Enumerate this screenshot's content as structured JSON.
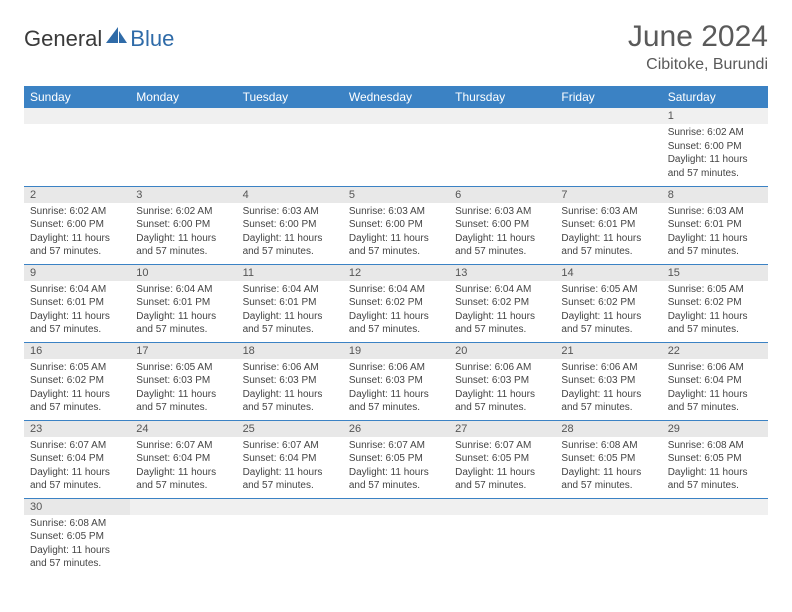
{
  "logo": {
    "general": "General",
    "blue": "Blue"
  },
  "title": "June 2024",
  "location": "Cibitoke, Burundi",
  "colors": {
    "header_bg": "#3b82c4",
    "header_fg": "#ffffff",
    "daynum_bg": "#e8e8e8",
    "text": "#444444",
    "title_color": "#5a5a5a",
    "logo_blue": "#2f6ba8"
  },
  "weekdays": [
    "Sunday",
    "Monday",
    "Tuesday",
    "Wednesday",
    "Thursday",
    "Friday",
    "Saturday"
  ],
  "weeks": [
    [
      {
        "n": "",
        "sr": "",
        "ss": "",
        "dl": ""
      },
      {
        "n": "",
        "sr": "",
        "ss": "",
        "dl": ""
      },
      {
        "n": "",
        "sr": "",
        "ss": "",
        "dl": ""
      },
      {
        "n": "",
        "sr": "",
        "ss": "",
        "dl": ""
      },
      {
        "n": "",
        "sr": "",
        "ss": "",
        "dl": ""
      },
      {
        "n": "",
        "sr": "",
        "ss": "",
        "dl": ""
      },
      {
        "n": "1",
        "sr": "Sunrise: 6:02 AM",
        "ss": "Sunset: 6:00 PM",
        "dl": "Daylight: 11 hours and 57 minutes."
      }
    ],
    [
      {
        "n": "2",
        "sr": "Sunrise: 6:02 AM",
        "ss": "Sunset: 6:00 PM",
        "dl": "Daylight: 11 hours and 57 minutes."
      },
      {
        "n": "3",
        "sr": "Sunrise: 6:02 AM",
        "ss": "Sunset: 6:00 PM",
        "dl": "Daylight: 11 hours and 57 minutes."
      },
      {
        "n": "4",
        "sr": "Sunrise: 6:03 AM",
        "ss": "Sunset: 6:00 PM",
        "dl": "Daylight: 11 hours and 57 minutes."
      },
      {
        "n": "5",
        "sr": "Sunrise: 6:03 AM",
        "ss": "Sunset: 6:00 PM",
        "dl": "Daylight: 11 hours and 57 minutes."
      },
      {
        "n": "6",
        "sr": "Sunrise: 6:03 AM",
        "ss": "Sunset: 6:00 PM",
        "dl": "Daylight: 11 hours and 57 minutes."
      },
      {
        "n": "7",
        "sr": "Sunrise: 6:03 AM",
        "ss": "Sunset: 6:01 PM",
        "dl": "Daylight: 11 hours and 57 minutes."
      },
      {
        "n": "8",
        "sr": "Sunrise: 6:03 AM",
        "ss": "Sunset: 6:01 PM",
        "dl": "Daylight: 11 hours and 57 minutes."
      }
    ],
    [
      {
        "n": "9",
        "sr": "Sunrise: 6:04 AM",
        "ss": "Sunset: 6:01 PM",
        "dl": "Daylight: 11 hours and 57 minutes."
      },
      {
        "n": "10",
        "sr": "Sunrise: 6:04 AM",
        "ss": "Sunset: 6:01 PM",
        "dl": "Daylight: 11 hours and 57 minutes."
      },
      {
        "n": "11",
        "sr": "Sunrise: 6:04 AM",
        "ss": "Sunset: 6:01 PM",
        "dl": "Daylight: 11 hours and 57 minutes."
      },
      {
        "n": "12",
        "sr": "Sunrise: 6:04 AM",
        "ss": "Sunset: 6:02 PM",
        "dl": "Daylight: 11 hours and 57 minutes."
      },
      {
        "n": "13",
        "sr": "Sunrise: 6:04 AM",
        "ss": "Sunset: 6:02 PM",
        "dl": "Daylight: 11 hours and 57 minutes."
      },
      {
        "n": "14",
        "sr": "Sunrise: 6:05 AM",
        "ss": "Sunset: 6:02 PM",
        "dl": "Daylight: 11 hours and 57 minutes."
      },
      {
        "n": "15",
        "sr": "Sunrise: 6:05 AM",
        "ss": "Sunset: 6:02 PM",
        "dl": "Daylight: 11 hours and 57 minutes."
      }
    ],
    [
      {
        "n": "16",
        "sr": "Sunrise: 6:05 AM",
        "ss": "Sunset: 6:02 PM",
        "dl": "Daylight: 11 hours and 57 minutes."
      },
      {
        "n": "17",
        "sr": "Sunrise: 6:05 AM",
        "ss": "Sunset: 6:03 PM",
        "dl": "Daylight: 11 hours and 57 minutes."
      },
      {
        "n": "18",
        "sr": "Sunrise: 6:06 AM",
        "ss": "Sunset: 6:03 PM",
        "dl": "Daylight: 11 hours and 57 minutes."
      },
      {
        "n": "19",
        "sr": "Sunrise: 6:06 AM",
        "ss": "Sunset: 6:03 PM",
        "dl": "Daylight: 11 hours and 57 minutes."
      },
      {
        "n": "20",
        "sr": "Sunrise: 6:06 AM",
        "ss": "Sunset: 6:03 PM",
        "dl": "Daylight: 11 hours and 57 minutes."
      },
      {
        "n": "21",
        "sr": "Sunrise: 6:06 AM",
        "ss": "Sunset: 6:03 PM",
        "dl": "Daylight: 11 hours and 57 minutes."
      },
      {
        "n": "22",
        "sr": "Sunrise: 6:06 AM",
        "ss": "Sunset: 6:04 PM",
        "dl": "Daylight: 11 hours and 57 minutes."
      }
    ],
    [
      {
        "n": "23",
        "sr": "Sunrise: 6:07 AM",
        "ss": "Sunset: 6:04 PM",
        "dl": "Daylight: 11 hours and 57 minutes."
      },
      {
        "n": "24",
        "sr": "Sunrise: 6:07 AM",
        "ss": "Sunset: 6:04 PM",
        "dl": "Daylight: 11 hours and 57 minutes."
      },
      {
        "n": "25",
        "sr": "Sunrise: 6:07 AM",
        "ss": "Sunset: 6:04 PM",
        "dl": "Daylight: 11 hours and 57 minutes."
      },
      {
        "n": "26",
        "sr": "Sunrise: 6:07 AM",
        "ss": "Sunset: 6:05 PM",
        "dl": "Daylight: 11 hours and 57 minutes."
      },
      {
        "n": "27",
        "sr": "Sunrise: 6:07 AM",
        "ss": "Sunset: 6:05 PM",
        "dl": "Daylight: 11 hours and 57 minutes."
      },
      {
        "n": "28",
        "sr": "Sunrise: 6:08 AM",
        "ss": "Sunset: 6:05 PM",
        "dl": "Daylight: 11 hours and 57 minutes."
      },
      {
        "n": "29",
        "sr": "Sunrise: 6:08 AM",
        "ss": "Sunset: 6:05 PM",
        "dl": "Daylight: 11 hours and 57 minutes."
      }
    ],
    [
      {
        "n": "30",
        "sr": "Sunrise: 6:08 AM",
        "ss": "Sunset: 6:05 PM",
        "dl": "Daylight: 11 hours and 57 minutes."
      },
      {
        "n": "",
        "sr": "",
        "ss": "",
        "dl": ""
      },
      {
        "n": "",
        "sr": "",
        "ss": "",
        "dl": ""
      },
      {
        "n": "",
        "sr": "",
        "ss": "",
        "dl": ""
      },
      {
        "n": "",
        "sr": "",
        "ss": "",
        "dl": ""
      },
      {
        "n": "",
        "sr": "",
        "ss": "",
        "dl": ""
      },
      {
        "n": "",
        "sr": "",
        "ss": "",
        "dl": ""
      }
    ]
  ]
}
